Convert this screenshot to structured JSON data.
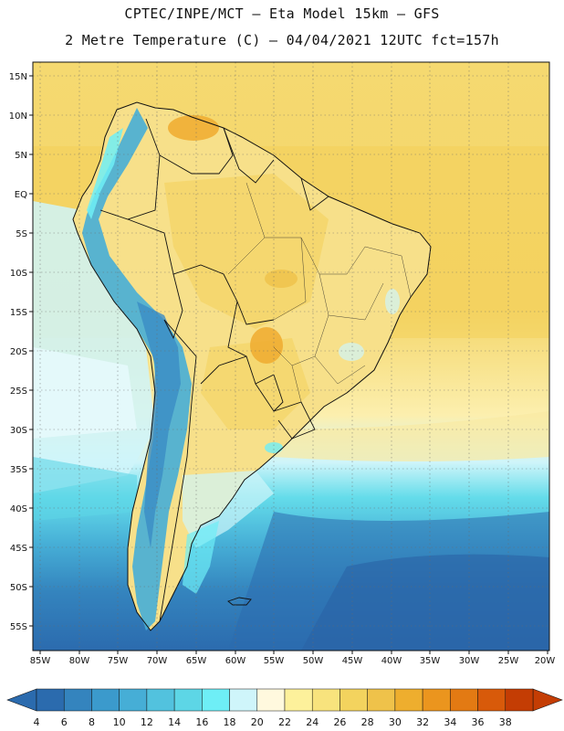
{
  "header": {
    "line1": "CPTEC/INPE/MCT –  Eta Model 15km – GFS",
    "line2": "2 Metre Temperature (C) – 04/04/2021 12UTC fct=157h"
  },
  "map": {
    "lon_labels": [
      "85W",
      "80W",
      "75W",
      "70W",
      "65W",
      "60W",
      "55W",
      "50W",
      "45W",
      "40W",
      "35W",
      "30W",
      "25W",
      "20W"
    ],
    "lat_labels": [
      "15N",
      "10N",
      "5N",
      "EQ",
      "5S",
      "10S",
      "15S",
      "20S",
      "25S",
      "30S",
      "35S",
      "40S",
      "45S",
      "50S",
      "55S"
    ],
    "lon_range": [
      -86,
      -20
    ],
    "lat_range": [
      17,
      -58
    ],
    "regions": [
      {
        "name": "tropical-ocean-north",
        "temp": "26-28",
        "color": "#F3D35E"
      },
      {
        "name": "continental-interior",
        "temp": "24-26",
        "color": "#F6DF7B"
      },
      {
        "name": "venezuela-hotspot",
        "temp": "30-32",
        "color": "#EFAE33"
      },
      {
        "name": "pantanal-hotspot",
        "temp": "30-32",
        "color": "#EFAE33"
      },
      {
        "name": "andes-highlands",
        "temp": "8-16",
        "color": "#4FB9CF"
      },
      {
        "name": "southern-ocean",
        "temp": "6-8",
        "color": "#2E7AB7"
      }
    ]
  },
  "colorbar": {
    "labels": [
      "4",
      "6",
      "8",
      "10",
      "12",
      "14",
      "16",
      "18",
      "20",
      "22",
      "24",
      "26",
      "28",
      "30",
      "32",
      "34",
      "36",
      "38"
    ],
    "colors": [
      "#2B6BAE",
      "#3484BE",
      "#3B9ACC",
      "#46AED6",
      "#52C2DE",
      "#5DD6E6",
      "#6EEEF6",
      "#CFF5FA",
      "#FFF9DE",
      "#FDF19B",
      "#F8E37D",
      "#F3D35E",
      "#EFC24A",
      "#EEAE2E",
      "#EB951E",
      "#E37A13",
      "#D85A0A",
      "#C43D04"
    ],
    "min_arrow_color": "#2B6BAE",
    "max_arrow_color": "#C43D04"
  }
}
